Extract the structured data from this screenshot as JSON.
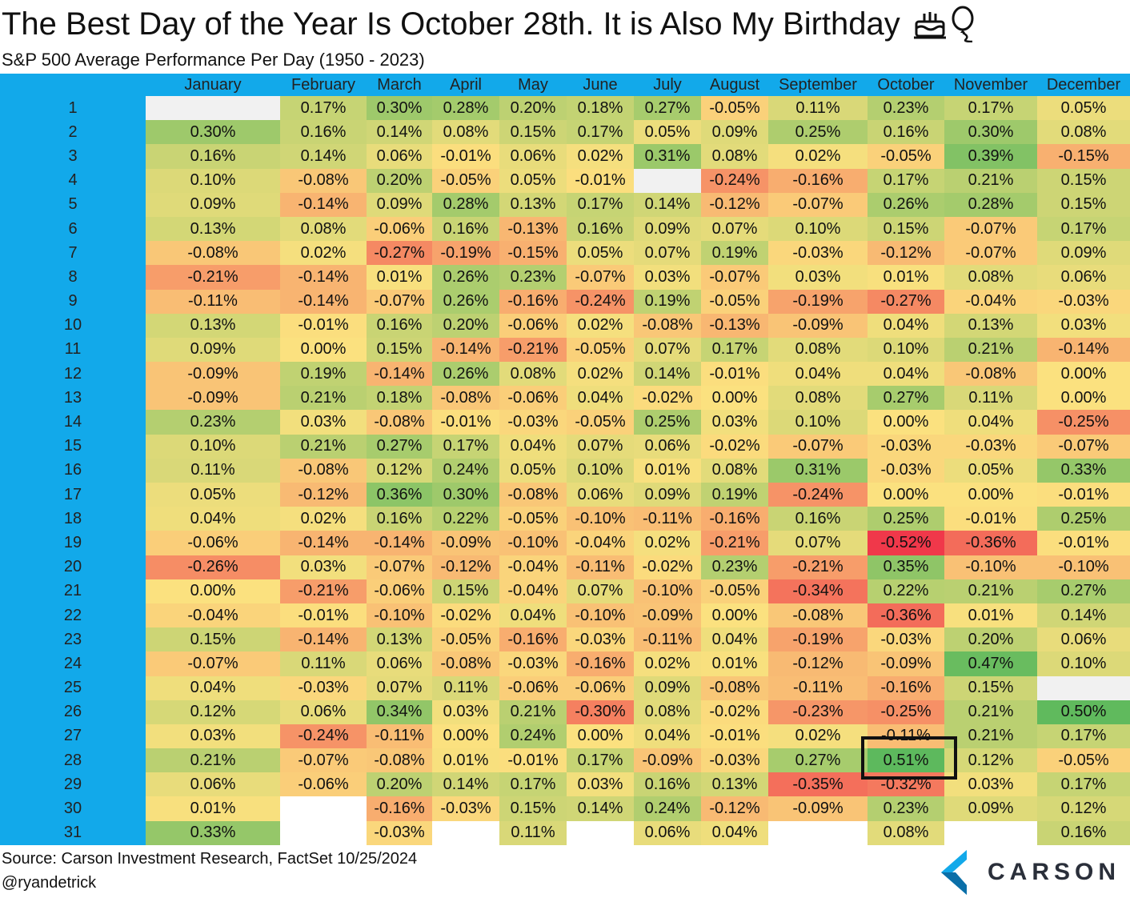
{
  "title": "The Best Day of the Year Is October 28th. It is Also My Birthday",
  "icons": [
    "birthday-cake-icon",
    "balloon-icon"
  ],
  "subtitle": "S&P 500 Average Performance Per Day (1950 - 2023)",
  "source": "Source: Carson Investment Research, FactSet 10/25/2024",
  "handle": "@ryandetrick",
  "logo_text": "CARSON",
  "colors": {
    "header_bg": "#12a9ea",
    "logo_blue": "#12a9ea"
  },
  "highlight": {
    "month": "October",
    "day": 28
  },
  "chart_data": {
    "type": "heatmap",
    "columns": [
      "January",
      "February",
      "March",
      "April",
      "May",
      "June",
      "July",
      "August",
      "September",
      "October",
      "November",
      "December"
    ],
    "rows": [
      1,
      2,
      3,
      4,
      5,
      6,
      7,
      8,
      9,
      10,
      11,
      12,
      13,
      14,
      15,
      16,
      17,
      18,
      19,
      20,
      21,
      22,
      23,
      24,
      25,
      26,
      27,
      28,
      29,
      30,
      31
    ],
    "unit": "%",
    "values": [
      [
        null,
        0.17,
        0.3,
        0.28,
        0.2,
        0.18,
        0.27,
        -0.05,
        0.11,
        0.23,
        0.17,
        0.05
      ],
      [
        0.3,
        0.16,
        0.14,
        0.08,
        0.15,
        0.17,
        0.05,
        0.09,
        0.25,
        0.16,
        0.3,
        0.08
      ],
      [
        0.16,
        0.14,
        0.06,
        -0.01,
        0.06,
        0.02,
        0.31,
        0.08,
        0.02,
        -0.05,
        0.39,
        -0.15
      ],
      [
        0.1,
        -0.08,
        0.2,
        -0.05,
        0.05,
        -0.01,
        null,
        -0.24,
        -0.16,
        0.17,
        0.21,
        0.15
      ],
      [
        0.09,
        -0.14,
        0.09,
        0.28,
        0.13,
        0.17,
        0.14,
        -0.12,
        -0.07,
        0.26,
        0.28,
        0.15
      ],
      [
        0.13,
        0.08,
        -0.06,
        0.16,
        -0.13,
        0.16,
        0.09,
        0.07,
        0.1,
        0.15,
        -0.07,
        0.17
      ],
      [
        -0.08,
        0.02,
        -0.27,
        -0.19,
        -0.15,
        0.05,
        0.07,
        0.19,
        -0.03,
        -0.12,
        -0.07,
        0.09
      ],
      [
        -0.21,
        -0.14,
        0.01,
        0.26,
        0.23,
        -0.07,
        0.03,
        -0.07,
        0.03,
        0.01,
        0.08,
        0.06
      ],
      [
        -0.11,
        -0.14,
        -0.07,
        0.26,
        -0.16,
        -0.24,
        0.19,
        -0.05,
        -0.19,
        -0.27,
        -0.04,
        -0.03
      ],
      [
        0.13,
        -0.01,
        0.16,
        0.2,
        -0.06,
        0.02,
        -0.08,
        -0.13,
        -0.09,
        0.04,
        0.13,
        0.03
      ],
      [
        0.09,
        0.0,
        0.15,
        -0.14,
        -0.21,
        -0.05,
        0.07,
        0.17,
        0.08,
        0.1,
        0.21,
        -0.14
      ],
      [
        -0.09,
        0.19,
        -0.14,
        0.26,
        0.08,
        0.02,
        0.14,
        -0.01,
        0.04,
        0.04,
        -0.08,
        0.0
      ],
      [
        -0.09,
        0.21,
        0.18,
        -0.08,
        -0.06,
        0.04,
        -0.02,
        0.0,
        0.08,
        0.27,
        0.11,
        0.0
      ],
      [
        0.23,
        0.03,
        -0.08,
        -0.01,
        -0.03,
        -0.05,
        0.25,
        0.03,
        0.1,
        0.0,
        0.04,
        -0.25
      ],
      [
        0.1,
        0.21,
        0.27,
        0.17,
        0.04,
        0.07,
        0.06,
        -0.02,
        -0.07,
        -0.03,
        -0.03,
        -0.07
      ],
      [
        0.11,
        -0.08,
        0.12,
        0.24,
        0.05,
        0.1,
        0.01,
        0.08,
        0.31,
        -0.03,
        0.05,
        0.33
      ],
      [
        0.05,
        -0.12,
        0.36,
        0.3,
        -0.08,
        0.06,
        0.09,
        0.19,
        -0.24,
        0.0,
        0.0,
        -0.01
      ],
      [
        0.04,
        0.02,
        0.16,
        0.22,
        -0.05,
        -0.1,
        -0.11,
        -0.16,
        0.16,
        0.25,
        -0.01,
        0.25
      ],
      [
        -0.06,
        -0.14,
        -0.14,
        -0.09,
        -0.1,
        -0.04,
        0.02,
        -0.21,
        0.07,
        -0.52,
        -0.36,
        -0.01
      ],
      [
        -0.26,
        0.03,
        -0.07,
        -0.12,
        -0.04,
        -0.11,
        -0.02,
        0.23,
        -0.21,
        0.35,
        -0.1,
        -0.1
      ],
      [
        0.0,
        -0.21,
        -0.06,
        0.15,
        -0.04,
        0.07,
        -0.1,
        -0.05,
        -0.34,
        0.22,
        0.21,
        0.27
      ],
      [
        -0.04,
        -0.01,
        -0.1,
        -0.02,
        0.04,
        -0.1,
        -0.09,
        0.0,
        -0.08,
        -0.36,
        0.01,
        0.14
      ],
      [
        0.15,
        -0.14,
        0.13,
        -0.05,
        -0.16,
        -0.03,
        -0.11,
        0.04,
        -0.19,
        -0.03,
        0.2,
        0.06
      ],
      [
        -0.07,
        0.11,
        0.06,
        -0.08,
        -0.03,
        -0.16,
        0.02,
        0.01,
        -0.12,
        -0.09,
        0.47,
        0.1
      ],
      [
        0.04,
        -0.03,
        0.07,
        0.11,
        -0.06,
        -0.06,
        0.09,
        -0.08,
        -0.11,
        -0.16,
        0.15,
        null
      ],
      [
        0.12,
        0.06,
        0.34,
        0.03,
        0.21,
        -0.3,
        0.08,
        -0.02,
        -0.23,
        -0.25,
        0.21,
        0.5
      ],
      [
        0.03,
        -0.24,
        -0.11,
        0.0,
        0.24,
        0.0,
        0.04,
        -0.01,
        0.02,
        -0.11,
        0.21,
        0.17
      ],
      [
        0.21,
        -0.07,
        -0.08,
        0.01,
        -0.01,
        0.17,
        -0.09,
        -0.03,
        0.27,
        0.51,
        0.12,
        -0.05
      ],
      [
        0.06,
        -0.06,
        0.2,
        0.14,
        0.17,
        0.03,
        0.16,
        0.13,
        -0.35,
        -0.32,
        0.03,
        0.17
      ],
      [
        0.01,
        null,
        -0.16,
        -0.03,
        0.15,
        0.14,
        0.24,
        -0.12,
        -0.09,
        0.23,
        0.09,
        0.12
      ],
      [
        0.33,
        null,
        -0.03,
        null,
        0.11,
        null,
        0.06,
        0.04,
        null,
        0.08,
        null,
        0.16
      ]
    ],
    "blank_cells": [
      [
        30,
        2
      ],
      [
        31,
        2
      ],
      [
        31,
        4
      ],
      [
        31,
        6
      ],
      [
        31,
        9
      ],
      [
        31,
        11
      ]
    ],
    "color_scale": {
      "low": -0.52,
      "mid": 0.0,
      "high": 0.52,
      "low_color": "#f0384a",
      "mid_color": "#fbe17f",
      "high_color": "#5ab85c"
    }
  }
}
